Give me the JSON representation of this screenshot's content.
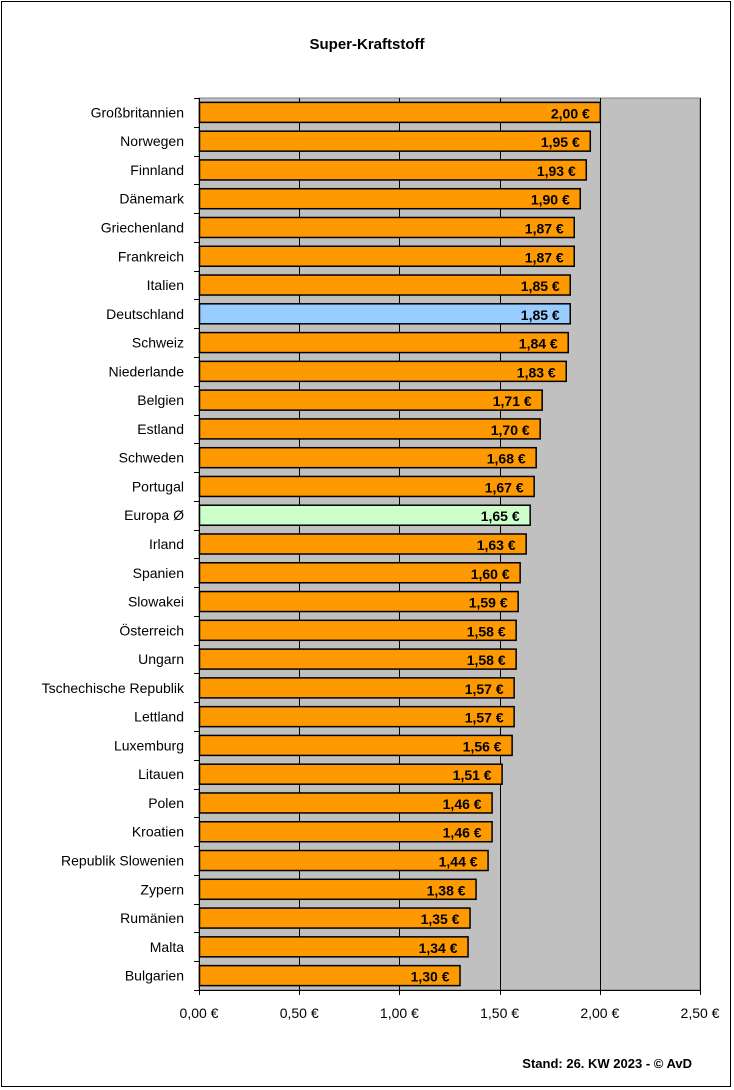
{
  "chart_data": {
    "type": "bar",
    "orientation": "horizontal",
    "title": "Super-Kraftstoff",
    "xlabel": "",
    "ylabel": "",
    "xlim": [
      0,
      2.5
    ],
    "x_ticks": [
      "0,00 €",
      "0,50 €",
      "1,00 €",
      "1,50 €",
      "2,00 €",
      "2,50 €"
    ],
    "x_tick_values": [
      0,
      0.5,
      1.0,
      1.5,
      2.0,
      2.5
    ],
    "grid": true,
    "categories": [
      "Großbritannien",
      "Norwegen",
      "Finnland",
      "Dänemark",
      "Griechenland",
      "Frankreich",
      "Italien",
      "Deutschland",
      "Schweiz",
      "Niederlande",
      "Belgien",
      "Estland",
      "Schweden",
      "Portugal",
      "Europa Ø",
      "Irland",
      "Spanien",
      "Slowakei",
      "Österreich",
      "Ungarn",
      "Tschechische Republik",
      "Lettland",
      "Luxemburg",
      "Litauen",
      "Polen",
      "Kroatien",
      "Republik Slowenien",
      "Zypern",
      "Rumänien",
      "Malta",
      "Bulgarien"
    ],
    "values": [
      2.0,
      1.95,
      1.93,
      1.9,
      1.87,
      1.87,
      1.85,
      1.85,
      1.84,
      1.83,
      1.71,
      1.7,
      1.68,
      1.67,
      1.65,
      1.63,
      1.6,
      1.59,
      1.58,
      1.58,
      1.57,
      1.57,
      1.56,
      1.51,
      1.46,
      1.46,
      1.44,
      1.38,
      1.35,
      1.34,
      1.3
    ],
    "value_labels": [
      "2,00 €",
      "1,95 €",
      "1,93 €",
      "1,90 €",
      "1,87 €",
      "1,87 €",
      "1,85 €",
      "1,85 €",
      "1,84 €",
      "1,83 €",
      "1,71 €",
      "1,70 €",
      "1,68 €",
      "1,67 €",
      "1,65 €",
      "1,63 €",
      "1,60 €",
      "1,59 €",
      "1,58 €",
      "1,58 €",
      "1,57 €",
      "1,57 €",
      "1,56 €",
      "1,51 €",
      "1,46 €",
      "1,46 €",
      "1,44 €",
      "1,38 €",
      "1,35 €",
      "1,34 €",
      "1,30 €"
    ],
    "colors": {
      "default": "#ff9900",
      "highlight_germany": "#99ccff",
      "highlight_europe": "#ccffcc",
      "plot_background": "#c0c0c0",
      "bar_border": "#000000"
    },
    "highlight": {
      "Deutschland": "highlight_germany",
      "Europa Ø": "highlight_europe"
    }
  },
  "footer": "Stand: 26. KW 2023 - © AvD"
}
